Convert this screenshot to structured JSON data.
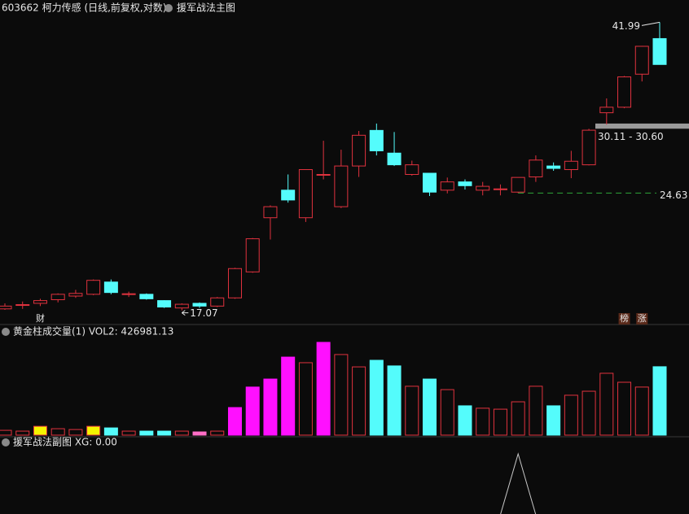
{
  "chart_data": [
    {
      "type": "candlestick",
      "title": "603662 柯力传感 (日线,前复权,对数)",
      "indicator": "援军战法主图",
      "log_scale": true,
      "ylim": [
        16.5,
        43
      ],
      "up_color": "#e0323e",
      "down_color": "#54fcfc",
      "open": [
        17.15,
        17.35,
        17.45,
        17.65,
        17.85,
        17.95,
        18.65,
        17.95,
        17.95,
        17.6,
        17.2,
        17.45,
        17.3,
        17.75,
        19.25,
        22.8,
        24.85,
        22.8,
        26.1,
        23.6,
        26.8,
        29.95,
        27.9,
        26.1,
        26.2,
        24.85,
        25.5,
        24.85,
        24.95,
        24.7,
        25.9,
        26.8,
        26.5,
        26.9,
        31.65,
        32.2,
        35.7,
        39.9
      ],
      "high": [
        17.45,
        17.55,
        17.7,
        18.0,
        18.2,
        18.8,
        18.8,
        18.1,
        18.0,
        17.62,
        17.45,
        17.5,
        17.8,
        19.5,
        21.4,
        23.7,
        26.1,
        26.5,
        29.0,
        28.2,
        29.9,
        30.6,
        29.8,
        27.25,
        26.2,
        25.85,
        25.7,
        25.5,
        25.3,
        25.86,
        27.7,
        27.1,
        28.1,
        30.1,
        33.1,
        35.5,
        39.0,
        41.99
      ],
      "low": [
        17.1,
        17.15,
        17.3,
        17.5,
        17.75,
        17.9,
        17.95,
        17.8,
        17.65,
        17.2,
        17.07,
        17.2,
        17.25,
        17.7,
        19.2,
        21.3,
        23.9,
        22.5,
        25.7,
        23.5,
        25.9,
        27.7,
        26.8,
        26.0,
        24.4,
        24.6,
        24.9,
        24.45,
        24.45,
        24.63,
        25.5,
        26.4,
        25.8,
        26.85,
        30.5,
        32.1,
        34.9,
        36.8
      ],
      "close": [
        17.3,
        17.38,
        17.6,
        17.95,
        18.0,
        18.75,
        18.05,
        17.98,
        17.7,
        17.25,
        17.4,
        17.3,
        17.75,
        19.45,
        21.35,
        23.6,
        24.1,
        26.5,
        26.1,
        26.8,
        29.5,
        28.1,
        26.9,
        26.9,
        24.7,
        25.5,
        25.2,
        25.15,
        24.95,
        25.86,
        27.3,
        26.6,
        27.2,
        29.97,
        32.2,
        35.4,
        38.95,
        36.8
      ],
      "max_index": 37,
      "min_index": 10,
      "band": {
        "low": 30.11,
        "high": 30.6,
        "label": "30.11 - 30.60"
      },
      "support_line": 24.63,
      "support_index": 29,
      "markers": [
        {
          "index": 2,
          "label": "财"
        },
        {
          "index": 35,
          "label": "榜"
        },
        {
          "index": 36,
          "label": "涨"
        }
      ]
    },
    {
      "type": "bar",
      "title": "黄金柱成交量(1) VOL2: 426981.13",
      "ylim": [
        0,
        660000
      ],
      "values": [
        30000,
        25000,
        55000,
        40000,
        35000,
        55000,
        45000,
        25000,
        25000,
        25000,
        25000,
        20000,
        25000,
        172000,
        300000,
        350000,
        487000,
        452000,
        579000,
        503000,
        426000,
        467000,
        432000,
        305000,
        350000,
        284000,
        183000,
        168000,
        162000,
        208000,
        305000,
        183000,
        249000,
        274000,
        386000,
        330000,
        300000,
        426981.13
      ],
      "styles": [
        "up",
        "up",
        "gold",
        "up",
        "up",
        "gold",
        "down",
        "up",
        "down",
        "down",
        "up",
        "pink",
        "up",
        "magenta",
        "magenta",
        "magenta",
        "magenta",
        "up",
        "magenta",
        "up",
        "up",
        "down",
        "down",
        "up",
        "down",
        "up",
        "down",
        "up",
        "up",
        "up",
        "up",
        "down",
        "up",
        "up",
        "up",
        "up",
        "up",
        "down"
      ]
    },
    {
      "type": "line",
      "title": "援军战法副图 XG: 0.00",
      "ylim": [
        0,
        1
      ],
      "color": "#c8c8c8",
      "values": [
        0,
        0,
        0,
        0,
        0,
        0,
        0,
        0,
        0,
        0,
        0,
        0,
        0,
        0,
        0,
        0,
        0,
        0,
        0,
        0,
        0,
        0,
        0,
        0,
        0,
        0,
        0,
        0,
        0,
        1,
        0,
        0,
        0,
        0,
        0,
        0,
        0,
        0
      ]
    }
  ]
}
